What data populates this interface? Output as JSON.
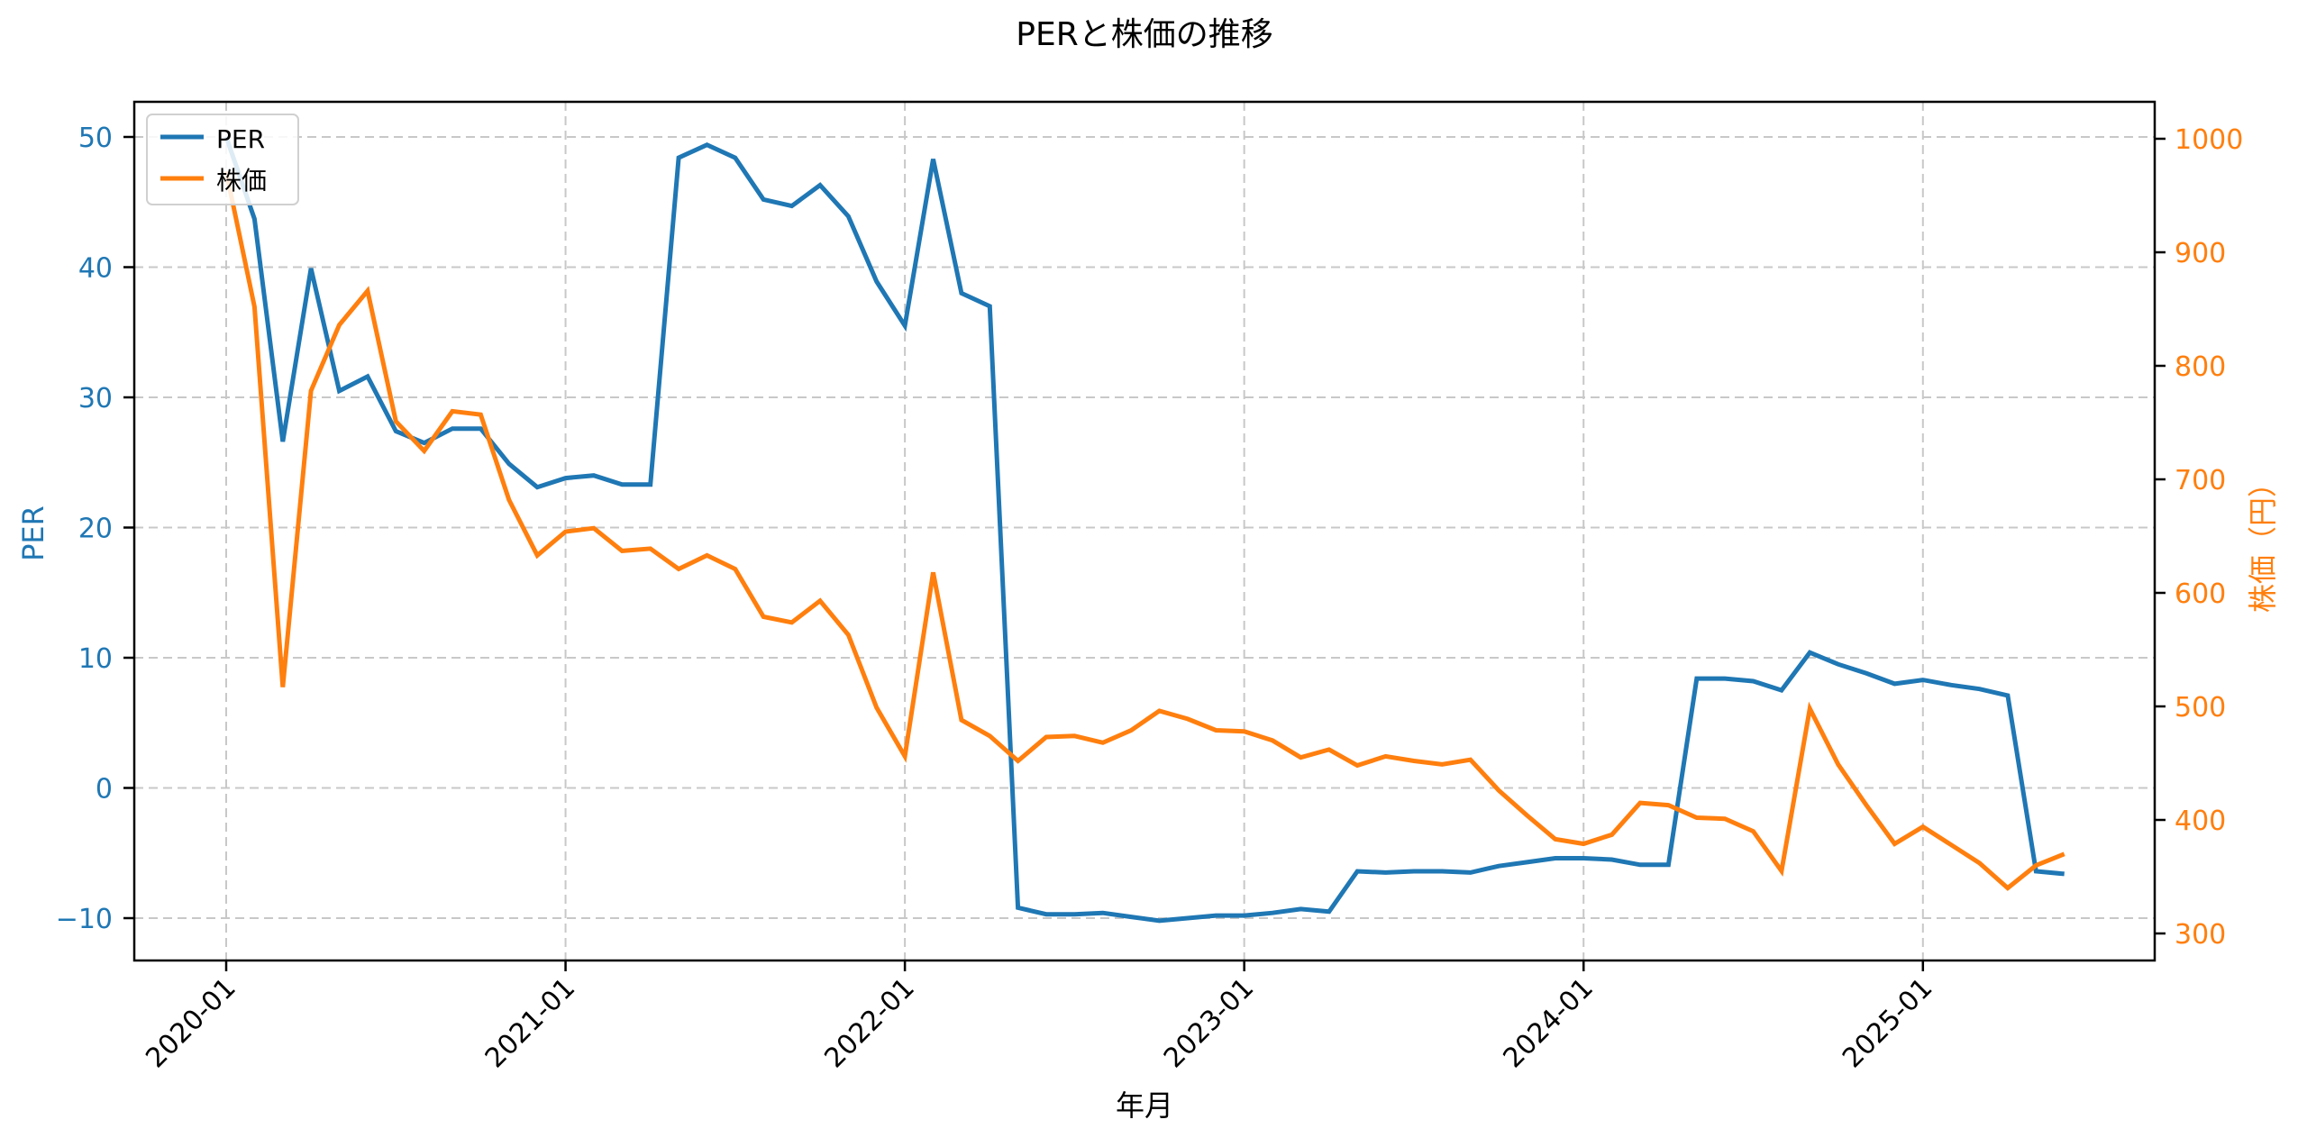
{
  "chart_data": {
    "type": "line",
    "title": "PERと株価の推移",
    "xlabel": "年月",
    "ylabel": "PER",
    "ylabel_right": "株価（円）",
    "ylim": [
      -13.3,
      52.6
    ],
    "ylim_right": [
      265,
      1035
    ],
    "yticks": [
      -10,
      0,
      10,
      20,
      30,
      40,
      50
    ],
    "yticks_right": [
      300,
      400,
      500,
      600,
      700,
      800,
      900,
      1000
    ],
    "xticks": [
      "2020-01",
      "2021-01",
      "2022-01",
      "2023-01",
      "2024-01",
      "2025-01"
    ],
    "grid": true,
    "legend_position": "upper left",
    "x": [
      "2020-01",
      "2020-02",
      "2020-03",
      "2020-04",
      "2020-05",
      "2020-06",
      "2020-07",
      "2020-08",
      "2020-09",
      "2020-10",
      "2020-11",
      "2020-12",
      "2021-01",
      "2021-02",
      "2021-03",
      "2021-04",
      "2021-05",
      "2021-06",
      "2021-07",
      "2021-08",
      "2021-09",
      "2021-10",
      "2021-11",
      "2021-12",
      "2022-01",
      "2022-02",
      "2022-03",
      "2022-04",
      "2022-05",
      "2022-06",
      "2022-07",
      "2022-08",
      "2022-09",
      "2022-10",
      "2022-11",
      "2022-12",
      "2023-01",
      "2023-02",
      "2023-03",
      "2023-04",
      "2023-05",
      "2023-06",
      "2023-07",
      "2023-08",
      "2023-09",
      "2023-10",
      "2023-11",
      "2023-12",
      "2024-01",
      "2024-02",
      "2024-03",
      "2024-04",
      "2024-05",
      "2024-06",
      "2024-07",
      "2024-08",
      "2024-09",
      "2024-10",
      "2024-11",
      "2024-12",
      "2025-01",
      "2025-02",
      "2025-03",
      "2025-04",
      "2025-05",
      "2025-06"
    ],
    "series": [
      {
        "name": "PER",
        "axis": "left",
        "color": "#1f77b4",
        "values": [
          50.0,
          43.7,
          26.6,
          39.9,
          30.5,
          31.6,
          27.4,
          26.5,
          27.6,
          27.6,
          24.9,
          23.1,
          23.8,
          24.0,
          23.3,
          23.3,
          48.4,
          49.4,
          48.4,
          45.2,
          44.7,
          46.3,
          43.9,
          38.9,
          35.5,
          48.3,
          38.0,
          37.0,
          -9.2,
          -9.7,
          -9.7,
          -9.6,
          -9.9,
          -10.2,
          -10.0,
          -9.8,
          -9.8,
          -9.6,
          -9.3,
          -9.5,
          -6.4,
          -6.5,
          -6.4,
          -6.4,
          -6.5,
          -6.0,
          -5.7,
          -5.4,
          -5.4,
          -5.5,
          -5.9,
          -5.9,
          8.4,
          8.4,
          8.2,
          7.5,
          10.4,
          9.5,
          8.8,
          8.0,
          8.3,
          7.9,
          7.6,
          7.1,
          -6.4,
          -6.6
        ]
      },
      {
        "name": "株価",
        "axis": "right",
        "color": "#ff7f0e",
        "values": [
          971,
          852,
          517,
          778,
          836,
          866,
          751,
          725,
          760,
          757,
          682,
          633,
          654,
          657,
          637,
          639,
          621,
          633,
          621,
          579,
          574,
          593,
          563,
          499,
          456,
          618,
          488,
          474,
          452,
          473,
          474,
          468,
          479,
          496,
          489,
          479,
          478,
          470,
          455,
          462,
          448,
          456,
          452,
          449,
          453,
          426,
          404,
          383,
          379,
          387,
          415,
          413,
          402,
          401,
          390,
          355,
          498,
          449,
          413,
          379,
          394,
          378,
          362,
          340,
          360,
          370
        ]
      }
    ]
  },
  "colors": {
    "per": "#1f77b4",
    "price": "#ff7f0e",
    "grid": "#c8c8c8",
    "axis": "#000000"
  }
}
